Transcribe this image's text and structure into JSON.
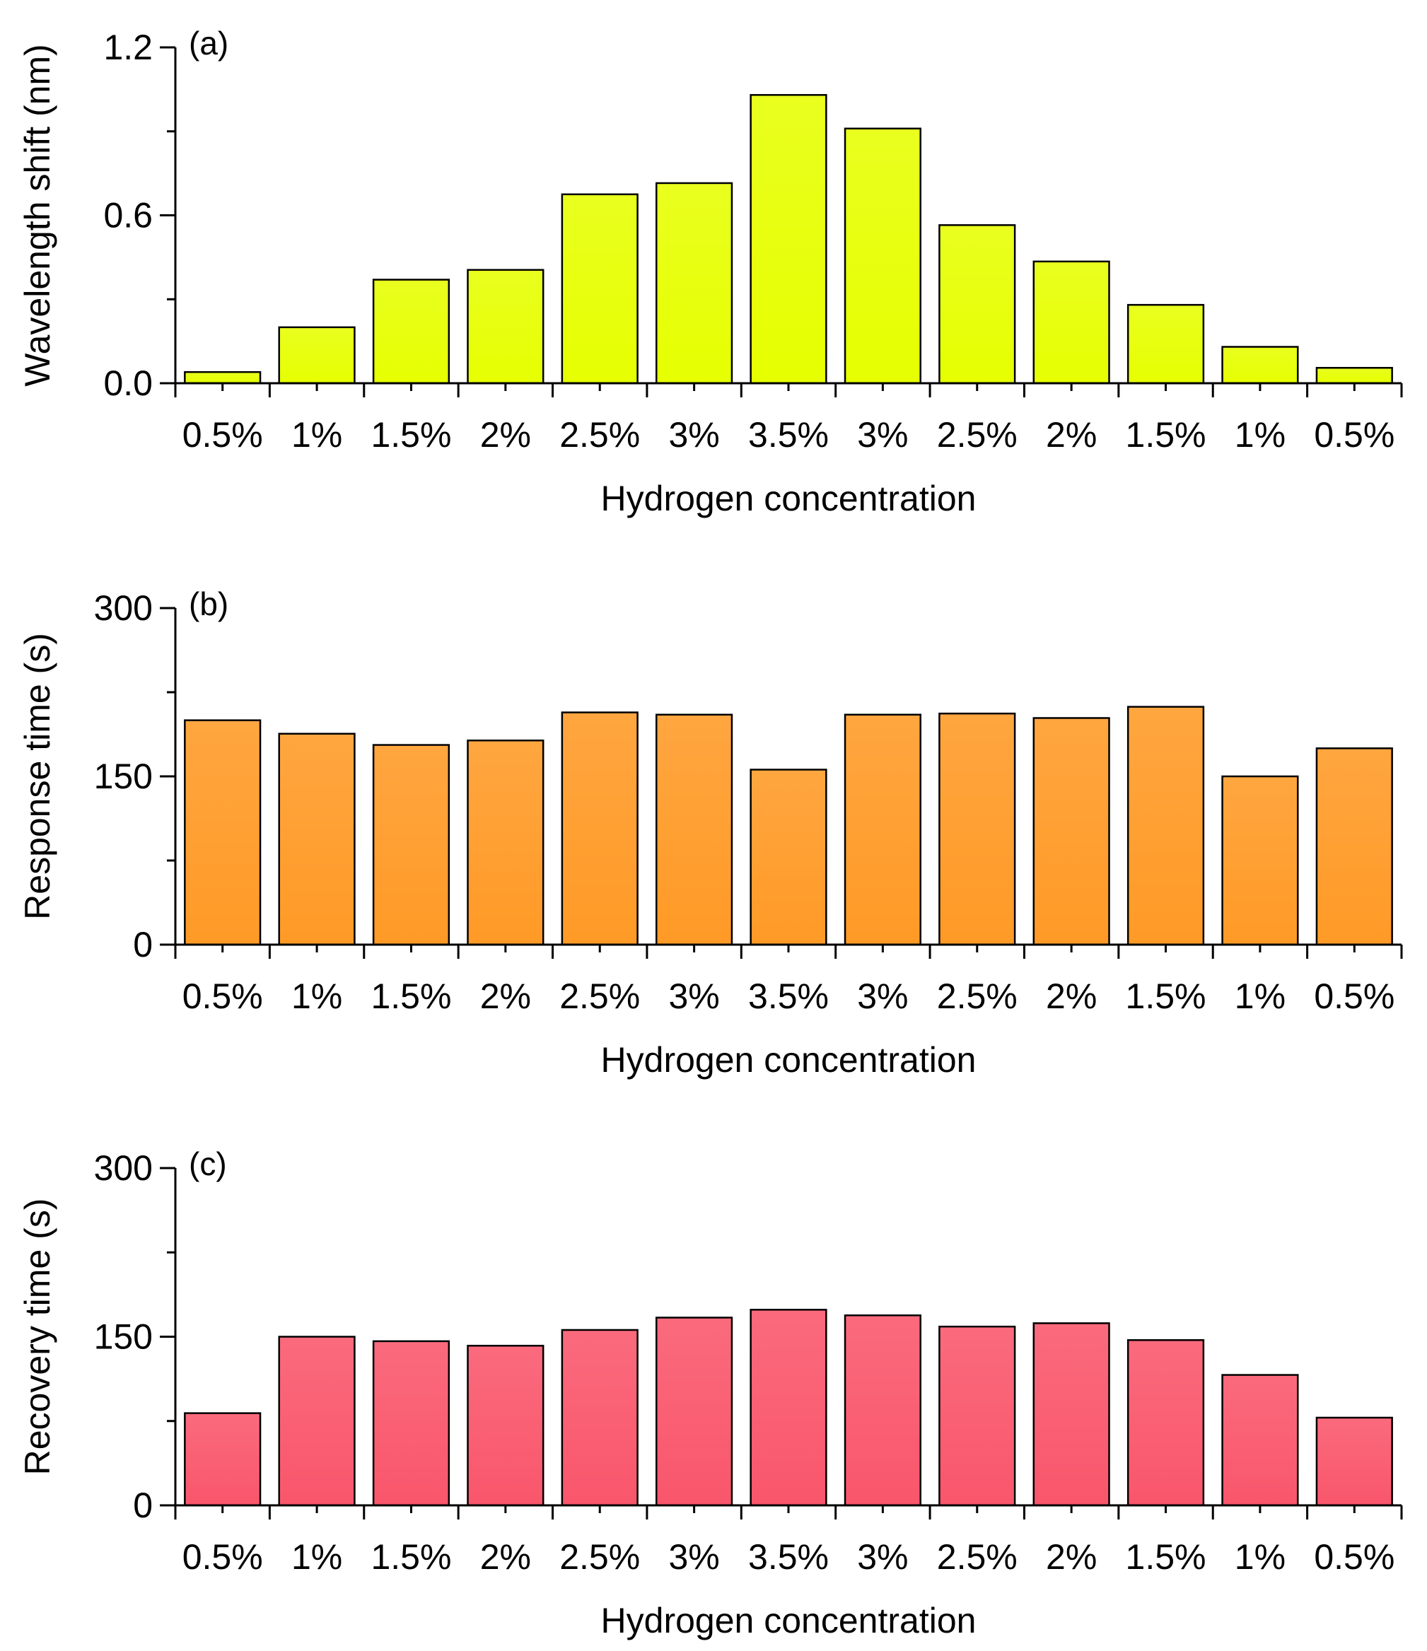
{
  "chart_data": [
    {
      "type": "bar",
      "panel_label": "(a)",
      "title": "",
      "xlabel": "Hydrogen concentration",
      "ylabel": "Wavelength shift (nm)",
      "categories": [
        "0.5%",
        "1%",
        "1.5%",
        "2%",
        "2.5%",
        "3%",
        "3.5%",
        "3%",
        "2.5%",
        "2%",
        "1.5%",
        "1%",
        "0.5%"
      ],
      "values": [
        0.04,
        0.2,
        0.37,
        0.405,
        0.675,
        0.715,
        1.03,
        0.91,
        0.565,
        0.435,
        0.28,
        0.13,
        0.055
      ],
      "ylim": [
        0,
        1.2
      ],
      "yticks": [
        0.0,
        0.6,
        1.2
      ],
      "ytick_labels": [
        "0.0",
        "0.6",
        "1.2"
      ],
      "color": "#e6ff00"
    },
    {
      "type": "bar",
      "panel_label": "(b)",
      "title": "",
      "xlabel": "Hydrogen concentration",
      "ylabel": "Response time (s)",
      "categories": [
        "0.5%",
        "1%",
        "1.5%",
        "2%",
        "2.5%",
        "3%",
        "3.5%",
        "3%",
        "2.5%",
        "2%",
        "1.5%",
        "1%",
        "0.5%"
      ],
      "values": [
        200,
        188,
        178,
        182,
        207,
        205,
        156,
        205,
        206,
        202,
        212,
        150,
        175
      ],
      "ylim": [
        0,
        300
      ],
      "yticks": [
        0,
        150,
        300
      ],
      "ytick_labels": [
        "0",
        "150",
        "300"
      ],
      "color": "#ff9a26"
    },
    {
      "type": "bar",
      "panel_label": "(c)",
      "title": "",
      "xlabel": "Hydrogen concentration",
      "ylabel": "Recovery time (s)",
      "categories": [
        "0.5%",
        "1%",
        "1.5%",
        "2%",
        "2.5%",
        "3%",
        "3.5%",
        "3%",
        "2.5%",
        "2%",
        "1.5%",
        "1%",
        "0.5%"
      ],
      "values": [
        82,
        150,
        146,
        142,
        156,
        167,
        174,
        169,
        159,
        162,
        147,
        116,
        78
      ],
      "ylim": [
        0,
        300
      ],
      "yticks": [
        0,
        150,
        300
      ],
      "ytick_labels": [
        "0",
        "150",
        "300"
      ],
      "color": "#f9566b"
    }
  ]
}
